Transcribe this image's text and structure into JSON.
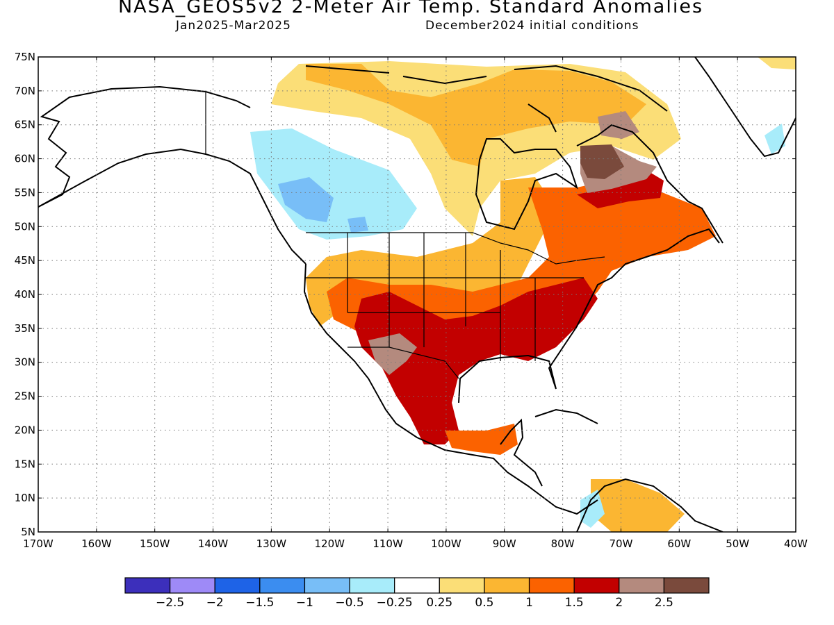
{
  "title": "NASA_GEOS5v2 2-Meter Air Temp. Standard Anomalies",
  "subtitle_left": "Jan2025-Mar2025",
  "subtitle_right": "December2024 initial conditions",
  "map": {
    "lat_range": [
      5,
      75
    ],
    "lon_range": [
      -170,
      -40
    ],
    "lat_ticks": [
      "5N",
      "10N",
      "15N",
      "20N",
      "25N",
      "30N",
      "35N",
      "40N",
      "45N",
      "50N",
      "55N",
      "60N",
      "65N",
      "70N",
      "75N"
    ],
    "lon_ticks": [
      "170W",
      "160W",
      "150W",
      "140W",
      "130W",
      "120W",
      "110W",
      "100W",
      "90W",
      "80W",
      "70W",
      "60W",
      "50W",
      "40W"
    ],
    "grid": true,
    "anomaly_regions": [
      {
        "region": "western-canada-cool",
        "color": "#a8ecfa"
      },
      {
        "region": "bc-cold-core",
        "color": "#78bef7"
      },
      {
        "region": "arctic-warm",
        "color": "#fbde77"
      },
      {
        "region": "central-us-warm",
        "color": "#fbb632"
      },
      {
        "region": "eastern-canada-warm",
        "color": "#fb6200"
      },
      {
        "region": "southern-us-hot",
        "color": "#c20000"
      },
      {
        "region": "labrador-extreme",
        "color": "#b48a7e"
      },
      {
        "region": "labrador-peak",
        "color": "#7a4a3c"
      }
    ]
  },
  "colorbar": {
    "colors": [
      "#3c2fbb",
      "#9e8af7",
      "#1e63e7",
      "#3b8df0",
      "#78bef7",
      "#a8ecfa",
      "#ffffff",
      "#fbde77",
      "#fbb632",
      "#fb6200",
      "#c20000",
      "#b48a7e",
      "#7a4a3c"
    ],
    "labels": [
      "-2.5",
      "-2",
      "-1.5",
      "-1",
      "-0.5",
      "-0.25",
      "0.25",
      "0.5",
      "1",
      "1.5",
      "2",
      "2.5"
    ]
  }
}
